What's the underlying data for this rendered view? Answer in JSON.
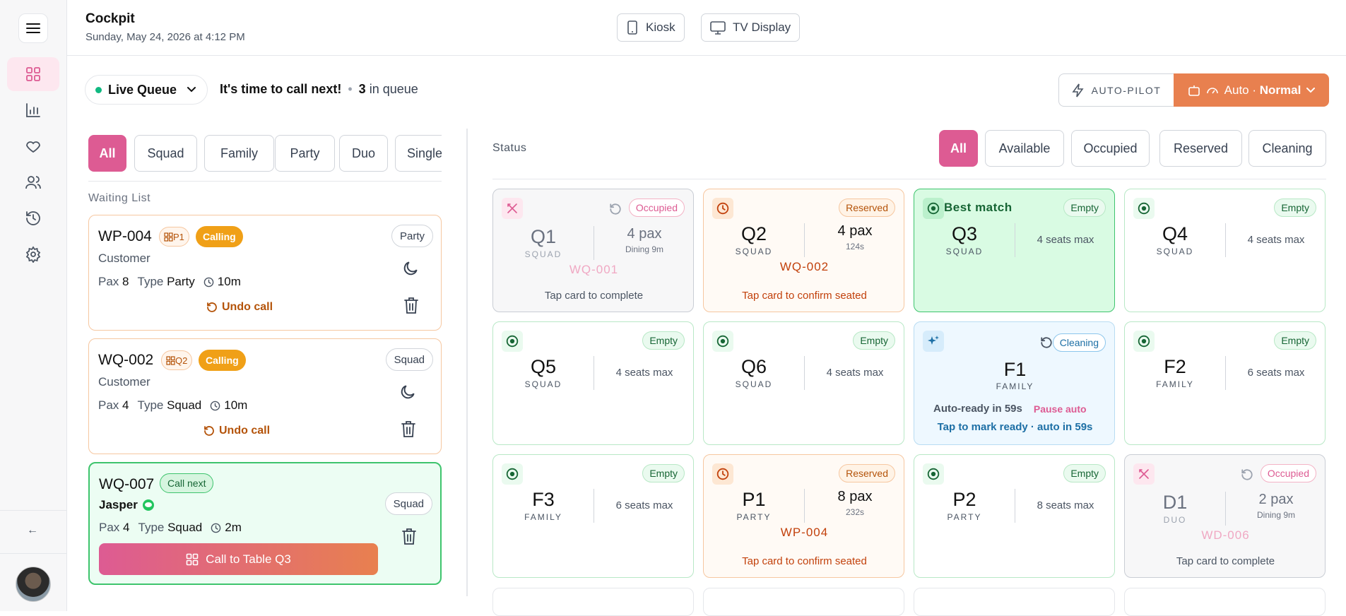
{
  "app": {
    "title": "Cockpit",
    "datetime": "Sunday, May 24, 2026 at 4:12 PM"
  },
  "top_buttons": {
    "kiosk": "Kiosk",
    "tv": "TV Display"
  },
  "sidebar": {
    "collapse": "←"
  },
  "queue": {
    "selector": "Live Queue",
    "message": "It's time to call next!",
    "bullet": "•",
    "count": "3",
    "count_suffix": "in queue"
  },
  "autopilot": {
    "label": "AUTO-PILOT",
    "mode": "Auto · ",
    "mode_strong": "Normal"
  },
  "filters": [
    "All",
    "Squad",
    "Family",
    "Party",
    "Duo",
    "Single"
  ],
  "waiting_header": "Waiting List",
  "waiting": [
    {
      "id": "WP-004",
      "tag": "P1",
      "status": "Calling",
      "type_pill": "Party",
      "name": "Customer",
      "pax_label": "Pax",
      "pax": "8",
      "type_label": "Type",
      "type": "Party",
      "wait": "10m",
      "undo": "Undo call"
    },
    {
      "id": "WQ-002",
      "tag": "Q2",
      "status": "Calling",
      "type_pill": "Squad",
      "name": "Customer",
      "pax_label": "Pax",
      "pax": "4",
      "type_label": "Type",
      "type": "Squad",
      "wait": "10m",
      "undo": "Undo call"
    },
    {
      "id": "WQ-007",
      "status": "Call next",
      "type_pill": "Squad",
      "name": "Jasper",
      "pax_label": "Pax",
      "pax": "4",
      "type_label": "Type",
      "type": "Squad",
      "wait": "2m",
      "cta": "Call to Table Q3"
    }
  ],
  "status_header": "Status",
  "status_filters": [
    "All",
    "Available",
    "Occupied",
    "Reserved",
    "Cleaning"
  ],
  "tables": [
    {
      "name": "Q1",
      "type": "SQUAD",
      "badge": "Occupied",
      "pax": "4 pax",
      "sub": "Dining 9m",
      "code": "WQ-001",
      "foot": "Tap card to complete"
    },
    {
      "name": "Q2",
      "type": "SQUAD",
      "badge": "Reserved",
      "pax": "4 pax",
      "sub": "124s",
      "code": "WQ-002",
      "foot": "Tap card to confirm seated"
    },
    {
      "name": "Q3",
      "type": "SQUAD",
      "badge": "Empty",
      "label": "Best match",
      "seats": "4 seats max"
    },
    {
      "name": "Q4",
      "type": "SQUAD",
      "badge": "Empty",
      "seats": "4 seats max"
    },
    {
      "name": "Q5",
      "type": "SQUAD",
      "badge": "Empty",
      "seats": "4 seats max"
    },
    {
      "name": "Q6",
      "type": "SQUAD",
      "badge": "Empty",
      "seats": "4 seats max"
    },
    {
      "name": "F1",
      "type": "FAMILY",
      "badge": "Cleaning",
      "auto": "Auto-ready in 59s",
      "pause": "Pause auto",
      "foot": "Tap to mark ready · auto in 59s"
    },
    {
      "name": "F2",
      "type": "FAMILY",
      "badge": "Empty",
      "seats": "6 seats max"
    },
    {
      "name": "F3",
      "type": "FAMILY",
      "badge": "Empty",
      "seats": "6 seats max"
    },
    {
      "name": "P1",
      "type": "PARTY",
      "badge": "Reserved",
      "pax": "8 pax",
      "sub": "232s",
      "code": "WP-004",
      "foot": "Tap card to confirm seated"
    },
    {
      "name": "P2",
      "type": "PARTY",
      "badge": "Empty",
      "seats": "8 seats max"
    },
    {
      "name": "D1",
      "type": "DUO",
      "badge": "Occupied",
      "pax": "2 pax",
      "sub": "Dining 9m",
      "code": "WD-006",
      "foot": "Tap card to complete"
    }
  ],
  "colors": {
    "accent_pink": "#dd5b93",
    "accent_orange": "#e8804f",
    "green": "#3ec46d",
    "calling": "#f0a017"
  }
}
